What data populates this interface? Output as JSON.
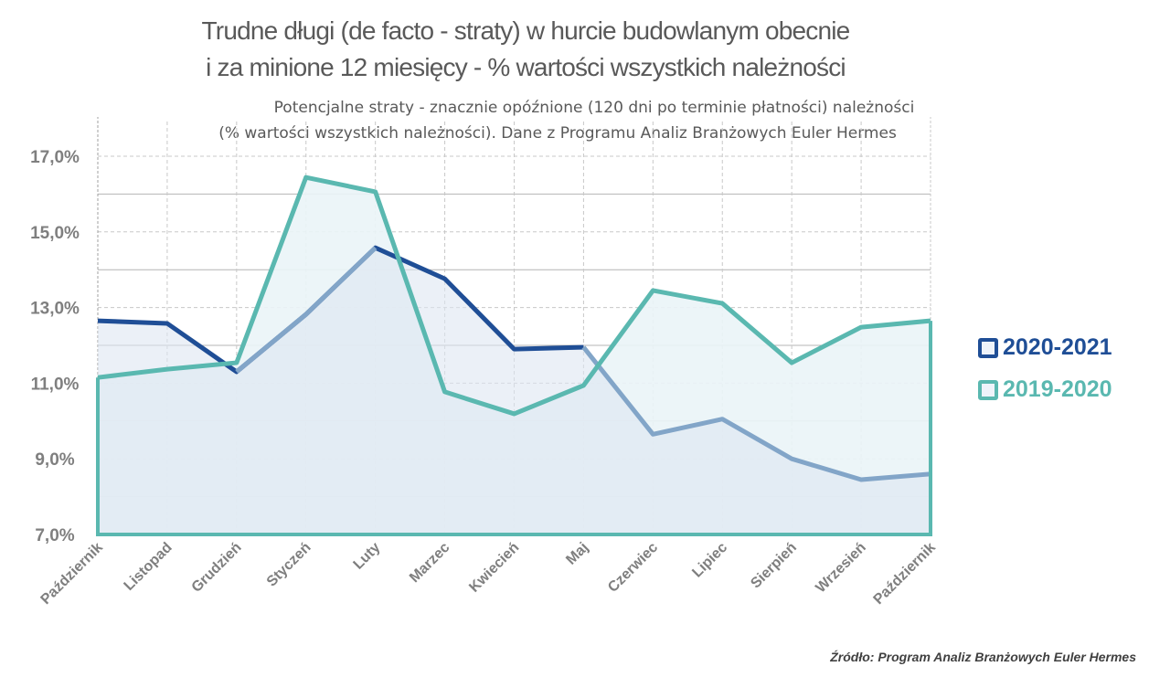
{
  "chart_data": {
    "type": "line",
    "title_lines": [
      "Trudne długi (de facto - straty) w hurcie budowlanym obecnie",
      "i za minione 12 miesięcy - % wartości wszystkich należności"
    ],
    "subtitle_lines": [
      "Potencjalne straty - znacznie opóźnione (120 dni po terminie płatności) należności",
      "(% wartości wszystkich należności). Dane z Programu Analiz Branżowych Euler Hermes"
    ],
    "categories": [
      "Październik",
      "Listopad",
      "Grudzień",
      "Styczeń",
      "Luty",
      "Marzec",
      "Kwiecień",
      "Maj",
      "Czerwiec",
      "Lipiec",
      "Sierpień",
      "Wrzesień",
      "Październik"
    ],
    "ylim": [
      7,
      17.6
    ],
    "yticks": [
      7,
      9,
      11,
      13,
      15,
      17
    ],
    "ytick_labels": [
      "7,0%",
      "9,0%",
      "11,0%",
      "13,0%",
      "15,0%",
      "17,0%"
    ],
    "grid": true,
    "legend_position": "right",
    "series": [
      {
        "name": "2020-2021",
        "color": "#1f4e96",
        "values": [
          12.65,
          12.58,
          11.3,
          12.82,
          14.58,
          13.76,
          11.9,
          11.95,
          null,
          null,
          null,
          null,
          null
        ]
      },
      {
        "name": "2019-2020",
        "color": "#5ab8b0",
        "values": [
          11.15,
          11.37,
          11.54,
          16.44,
          16.06,
          10.77,
          10.19,
          10.94,
          13.45,
          13.11,
          11.54,
          12.48,
          12.65
        ]
      },
      {
        "name": "",
        "color": "#82a5c8",
        "values": [
          null,
          null,
          11.3,
          12.82,
          14.58,
          null,
          null,
          11.95,
          9.65,
          10.05,
          9.0,
          8.45,
          8.6
        ]
      }
    ],
    "source": "Źródło: Program Analiz Branżowych Euler Hermes"
  }
}
